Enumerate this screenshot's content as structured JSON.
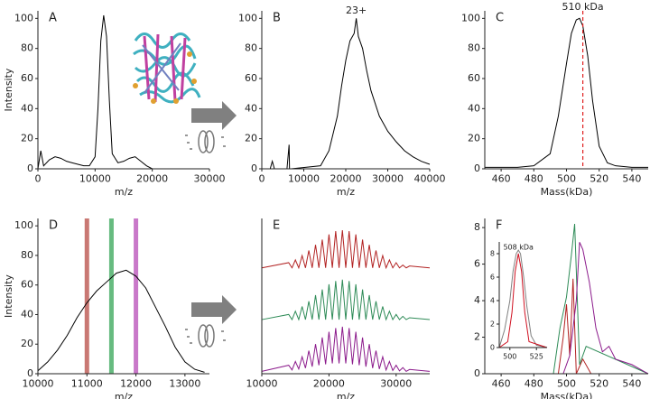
{
  "chart_data": [
    {
      "type": "line",
      "label": "A",
      "xlabel": "m/z",
      "ylabel": "Intensity",
      "xlim": [
        0,
        30000
      ],
      "ylim": [
        0,
        105
      ],
      "xticks": [
        0,
        10000,
        20000,
        30000
      ],
      "yticks": [
        0,
        20,
        40,
        60,
        80,
        100
      ],
      "series": [
        {
          "color": "#000000",
          "x": [
            0,
            500,
            1000,
            2000,
            3000,
            4000,
            5000,
            6000,
            7000,
            8000,
            9000,
            10000,
            10500,
            11000,
            11500,
            12000,
            12500,
            13000,
            14000,
            15000,
            16000,
            17000,
            18000,
            19000,
            20000,
            22000,
            30000
          ],
          "values": [
            0,
            12,
            2,
            6,
            8,
            7,
            5,
            4,
            3,
            2,
            2,
            8,
            40,
            85,
            102,
            88,
            45,
            10,
            4,
            5,
            7,
            8,
            5,
            2,
            0,
            0,
            0
          ]
        }
      ]
    },
    {
      "type": "line",
      "label": "B",
      "xlabel": "m/z",
      "xlim": [
        0,
        40000
      ],
      "ylim": [
        0,
        105
      ],
      "xticks": [
        0,
        10000,
        20000,
        30000,
        40000
      ],
      "yticks": [
        0,
        20,
        40,
        60,
        80,
        100
      ],
      "annotation": {
        "text": "23+",
        "x": 22500
      },
      "series": [
        {
          "color": "#000000",
          "x": [
            0,
            2000,
            2500,
            3000,
            6000,
            6500,
            6600,
            7000,
            14000,
            16000,
            18000,
            19000,
            20000,
            21000,
            22000,
            22500,
            23000,
            24000,
            25000,
            26000,
            28000,
            30000,
            32000,
            34000,
            36000,
            38000,
            40000
          ],
          "values": [
            0,
            0,
            5,
            0,
            0,
            16,
            0,
            0,
            2,
            12,
            35,
            55,
            72,
            85,
            90,
            100,
            88,
            80,
            65,
            52,
            35,
            25,
            18,
            12,
            8,
            5,
            3
          ]
        }
      ]
    },
    {
      "type": "line",
      "label": "C",
      "xlabel": "Mass(kDa)",
      "xlim": [
        450,
        550
      ],
      "ylim": [
        0,
        105
      ],
      "xticks": [
        460,
        480,
        500,
        520,
        540
      ],
      "yticks": [
        0,
        20,
        40,
        60,
        80,
        100
      ],
      "marker": {
        "value": 510,
        "label": "510 kDa",
        "color": "#e02020"
      },
      "series": [
        {
          "color": "#000000",
          "x": [
            450,
            460,
            470,
            480,
            490,
            495,
            500,
            503,
            506,
            508,
            510,
            513,
            516,
            520,
            525,
            530,
            540,
            550
          ],
          "values": [
            1,
            1,
            1,
            2,
            10,
            35,
            70,
            90,
            99,
            100,
            95,
            75,
            45,
            15,
            4,
            2,
            1,
            1
          ]
        }
      ]
    },
    {
      "type": "line",
      "label": "D",
      "xlabel": "m/z",
      "ylabel": "Intensity",
      "xlim": [
        10000,
        13500
      ],
      "ylim": [
        0,
        105
      ],
      "xticks": [
        10000,
        11000,
        12000,
        13000
      ],
      "yticks": [
        0,
        20,
        40,
        60,
        80,
        100
      ],
      "bands": [
        {
          "value": 11000,
          "color": "#c0605a"
        },
        {
          "value": 11500,
          "color": "#4caf6a"
        },
        {
          "value": 12000,
          "color": "#c060c0"
        }
      ],
      "series": [
        {
          "color": "#000000",
          "x": [
            10000,
            10200,
            10400,
            10600,
            10800,
            11000,
            11200,
            11400,
            11600,
            11800,
            12000,
            12200,
            12400,
            12600,
            12800,
            13000,
            13200,
            13400
          ],
          "values": [
            2,
            8,
            16,
            26,
            38,
            48,
            56,
            62,
            68,
            70,
            66,
            58,
            45,
            32,
            18,
            8,
            3,
            1
          ]
        }
      ]
    },
    {
      "type": "line",
      "label": "E",
      "xlabel": "m/z",
      "xlim": [
        10000,
        35000
      ],
      "ylim": [
        0,
        3.3
      ],
      "xticks": [
        10000,
        20000,
        30000
      ],
      "x": [
        10000,
        14000,
        14500,
        15000,
        15500,
        16000,
        16500,
        17000,
        17500,
        18000,
        18500,
        19000,
        19500,
        20000,
        20500,
        21000,
        21500,
        22000,
        22500,
        23000,
        23500,
        24000,
        24500,
        25000,
        25500,
        26000,
        26500,
        27000,
        27500,
        28000,
        28500,
        29000,
        29500,
        30000,
        30500,
        31000,
        31500,
        32000,
        35000
      ],
      "series": [
        {
          "color": "#b22222",
          "values": [
            2.25,
            2.36,
            2.25,
            2.42,
            2.25,
            2.51,
            2.25,
            2.62,
            2.25,
            2.74,
            2.25,
            2.85,
            2.25,
            2.96,
            2.25,
            3.03,
            2.25,
            3.05,
            2.25,
            3.03,
            2.25,
            2.96,
            2.25,
            2.85,
            2.25,
            2.74,
            2.25,
            2.62,
            2.25,
            2.51,
            2.25,
            2.42,
            2.25,
            2.36,
            2.25,
            2.31,
            2.25,
            2.29,
            2.25
          ]
        },
        {
          "color": "#2e8b57",
          "values": [
            1.15,
            1.26,
            1.15,
            1.33,
            1.15,
            1.43,
            1.15,
            1.54,
            1.15,
            1.67,
            1.15,
            1.79,
            1.15,
            1.9,
            1.15,
            1.97,
            1.15,
            2.0,
            1.15,
            1.97,
            1.15,
            1.9,
            1.15,
            1.79,
            1.15,
            1.67,
            1.15,
            1.54,
            1.15,
            1.43,
            1.15,
            1.33,
            1.15,
            1.26,
            1.15,
            1.22,
            1.15,
            1.19,
            1.15
          ]
        },
        {
          "color": "#8b1a8b",
          "values": [
            0.05,
            0.18,
            0.08,
            0.26,
            0.1,
            0.36,
            0.12,
            0.49,
            0.15,
            0.63,
            0.18,
            0.77,
            0.2,
            0.89,
            0.22,
            0.97,
            0.22,
            1.0,
            0.22,
            0.97,
            0.2,
            0.89,
            0.18,
            0.77,
            0.15,
            0.63,
            0.12,
            0.49,
            0.1,
            0.36,
            0.08,
            0.26,
            0.07,
            0.18,
            0.06,
            0.13,
            0.05,
            0.09,
            0.05
          ]
        }
      ]
    },
    {
      "type": "line",
      "label": "F",
      "xlabel": "Mass(kDa)",
      "xlim": [
        450,
        550
      ],
      "ylim": [
        0,
        8.5
      ],
      "xticks": [
        460,
        480,
        500,
        520,
        540
      ],
      "yticks": [
        0,
        2,
        4,
        6,
        8
      ],
      "series": [
        {
          "color": "#b22222",
          "x": [
            450,
            495,
            498,
            500,
            502,
            504,
            506,
            510,
            515,
            550
          ],
          "values": [
            0,
            0,
            2,
            3.8,
            1,
            5.2,
            0,
            0.8,
            0,
            0
          ]
        },
        {
          "color": "#2e8b57",
          "x": [
            450,
            492,
            496,
            500,
            503,
            505,
            508,
            512,
            550
          ],
          "values": [
            0,
            0,
            2.5,
            4.2,
            6.5,
            8.2,
            0.5,
            1.5,
            0
          ]
        },
        {
          "color": "#8b1a8b",
          "x": [
            450,
            498,
            502,
            506,
            508,
            510,
            514,
            518,
            522,
            526,
            530,
            540,
            550
          ],
          "values": [
            0,
            0,
            1,
            4,
            7.2,
            6.8,
            5,
            2.5,
            1.2,
            1.5,
            0.8,
            0.5,
            0
          ]
        }
      ],
      "inset": {
        "type": "line",
        "annotation": {
          "text": "508 kDa",
          "x": 508
        },
        "xlim": [
          490,
          535
        ],
        "ylim": [
          0,
          9
        ],
        "xticks": [
          500,
          525
        ],
        "yticks": [
          0,
          2,
          4,
          6,
          8
        ],
        "series": [
          {
            "color": "#808080",
            "x": [
              490,
              495,
              500,
              503,
              506,
              508,
              510,
              513,
              516,
              520,
              525,
              535
            ],
            "values": [
              0,
              1.5,
              4,
              6.5,
              8,
              8.3,
              8,
              6,
              3.5,
              1,
              0.2,
              0
            ]
          },
          {
            "color": "#d01020",
            "x": [
              490,
              498,
              502,
              505,
              508,
              511,
              514,
              518,
              535
            ],
            "values": [
              0,
              0.5,
              3,
              6.5,
              8,
              6.5,
              3,
              0.5,
              0
            ]
          }
        ]
      }
    }
  ]
}
